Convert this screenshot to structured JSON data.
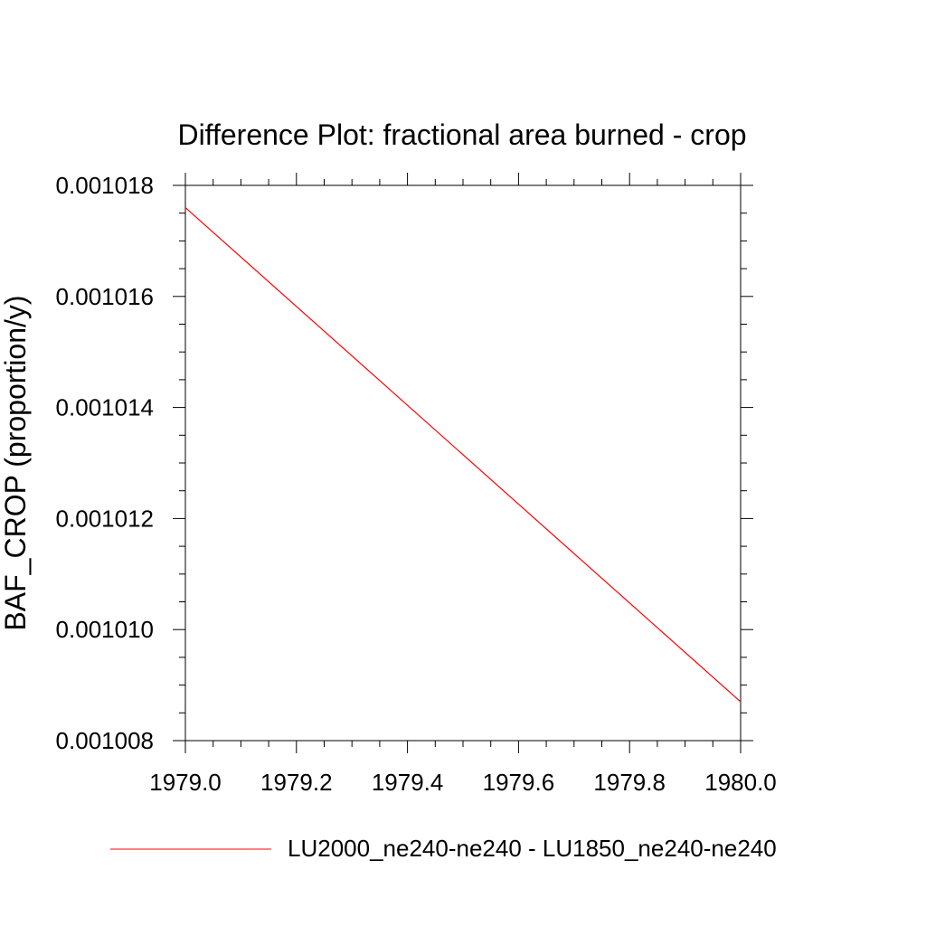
{
  "chart_data": {
    "type": "line",
    "title": "Difference Plot: fractional area burned - crop",
    "xlabel": "",
    "ylabel": "BAF_CROP  (proportion/y)",
    "xlim": [
      1979.0,
      1980.0
    ],
    "ylim": [
      0.001008,
      0.001018
    ],
    "xticks": [
      "1979.0",
      "1979.2",
      "1979.4",
      "1979.6",
      "1979.8",
      "1980.0"
    ],
    "xtick_values": [
      1979.0,
      1979.2,
      1979.4,
      1979.6,
      1979.8,
      1980.0
    ],
    "yticks": [
      "0.001008",
      "0.001010",
      "0.001012",
      "0.001014",
      "0.001016",
      "0.001018"
    ],
    "ytick_values": [
      0.001008,
      0.00101,
      0.001012,
      0.001014,
      0.001016,
      0.001018
    ],
    "grid": false,
    "legend_position": "bottom",
    "series": [
      {
        "name": "LU2000_ne240-ne240 - LU1850_ne240-ne240",
        "color": "#ff0000",
        "x": [
          1979.0,
          1980.0
        ],
        "y": [
          0.0010176,
          0.0010087
        ]
      }
    ]
  }
}
